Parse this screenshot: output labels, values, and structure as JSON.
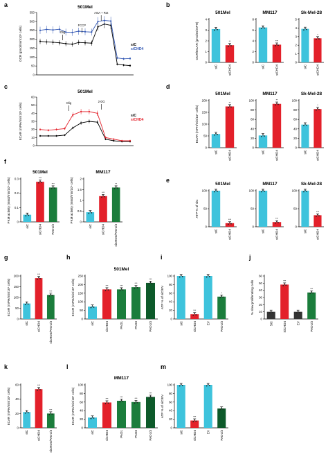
{
  "colors": {
    "siC": "#3ec3dc",
    "red": "#e3202a",
    "green": "#1b7d3c",
    "dark_green": "#0d5a2a",
    "blue": "#3358b4",
    "black": "#000000"
  },
  "panels": [
    {
      "letter": "a",
      "type": "line",
      "title": "501Mel",
      "ylabel": "OCR (pmol/min/10⁴ cells)",
      "ylim": [
        0,
        350
      ],
      "yticks": [
        0,
        50,
        100,
        150,
        200,
        250,
        300,
        350
      ],
      "annotations": [
        "Olig",
        "FCCP",
        "AntA + Rot"
      ],
      "legend": [
        "siC",
        "siCHD4"
      ],
      "series": [
        {
          "name": "siC",
          "color": "#000000",
          "values": [
            188,
            185,
            183,
            180,
            175,
            172,
            182,
            180,
            178,
            270,
            285,
            278,
            60,
            55,
            52
          ]
        },
        {
          "name": "siCHD4",
          "color": "#3358b4",
          "values": [
            250,
            255,
            252,
            256,
            240,
            238,
            245,
            242,
            240,
            300,
            305,
            302,
            95,
            90,
            92
          ]
        }
      ]
    },
    {
      "letter": "a",
      "type": "line",
      "title": "501Mel",
      "ylabel": "ECAR (mPH/min/10⁴ cells)",
      "ylim": [
        0,
        60
      ],
      "yticks": [
        0,
        10,
        20,
        30,
        40,
        50,
        60
      ],
      "annotations": [
        "Olig",
        "2-DG"
      ],
      "legend": [
        "siC",
        "siCHD4"
      ],
      "series": [
        {
          "name": "siC",
          "color": "#000000",
          "values": [
            12,
            12,
            12,
            13,
            22,
            28,
            30,
            29,
            8,
            6,
            5,
            5
          ]
        },
        {
          "name": "siCHD4",
          "color": "#e3202a",
          "values": [
            20,
            19,
            20,
            21,
            38,
            42,
            42,
            40,
            10,
            8,
            6,
            6
          ]
        }
      ]
    }
  ],
  "letters": {
    "a": "a",
    "b": "b",
    "c": "c",
    "d": "d",
    "e": "e",
    "f": "f",
    "g": "g",
    "h": "h",
    "i": "i",
    "j": "j",
    "k": "k",
    "l": "l",
    "m": "m"
  },
  "chart_data": [
    {
      "id": "a",
      "type": "line",
      "title": "501Mel",
      "ylabel": "OCR (pmol/min/10⁴ cells)",
      "ylim": [
        0,
        350
      ],
      "legend": [
        "siC",
        "siCHD4"
      ],
      "annotations": [
        "Olig",
        "FCCP",
        "AntA + Rot"
      ],
      "series": [
        {
          "name": "siC",
          "values": [
            188,
            185,
            183,
            180,
            175,
            172,
            182,
            180,
            178,
            270,
            285,
            278,
            60,
            55,
            52
          ]
        },
        {
          "name": "siCHD4",
          "values": [
            250,
            255,
            252,
            256,
            240,
            238,
            245,
            242,
            240,
            300,
            305,
            302,
            95,
            90,
            92
          ]
        }
      ]
    },
    {
      "id": "b1",
      "type": "bar",
      "title": "501Mel",
      "ylabel": "OCR/ECAR (pmoles/mPH)",
      "ylim": [
        0,
        4
      ],
      "yticks": [
        0,
        1,
        2,
        3,
        4
      ],
      "categories": [
        "siC",
        "siCHD4"
      ],
      "values": [
        3.1,
        1.6
      ],
      "colors": [
        "#3ec3dc",
        "#e3202a"
      ],
      "sig": [
        "",
        "**"
      ]
    },
    {
      "id": "b2",
      "type": "bar",
      "title": "MM117",
      "ylim": [
        0,
        8
      ],
      "yticks": [
        0,
        2,
        4,
        6,
        8
      ],
      "categories": [
        "siC",
        "siCHD4"
      ],
      "values": [
        6.5,
        3.3
      ],
      "colors": [
        "#3ec3dc",
        "#e3202a"
      ],
      "sig": [
        "",
        "***"
      ]
    },
    {
      "id": "b3",
      "type": "bar",
      "title": "Sk-Mel-28",
      "ylim": [
        0,
        5
      ],
      "yticks": [
        0,
        1,
        2,
        3,
        4,
        5
      ],
      "categories": [
        "siC",
        "siCHD4"
      ],
      "values": [
        3.9,
        2.8
      ],
      "colors": [
        "#3ec3dc",
        "#e3202a"
      ],
      "sig": [
        "",
        "*"
      ]
    },
    {
      "id": "c",
      "type": "line",
      "title": "501Mel",
      "ylabel": "ECAR (mPH/min/10⁴ cells)",
      "ylim": [
        0,
        60
      ],
      "legend": [
        "siC",
        "siCHD4"
      ],
      "annotations": [
        "Olig",
        "2-DG"
      ],
      "series": [
        {
          "name": "siC",
          "values": [
            12,
            12,
            12,
            13,
            22,
            28,
            30,
            29,
            8,
            6,
            5,
            5
          ]
        },
        {
          "name": "siCHD4",
          "values": [
            20,
            19,
            20,
            21,
            38,
            42,
            42,
            40,
            10,
            8,
            6,
            6
          ]
        }
      ]
    },
    {
      "id": "d1",
      "type": "bar",
      "title": "501Mel",
      "ylabel": "ECAR (mPH/min/10⁴ cells)",
      "ylim": [
        0,
        200
      ],
      "yticks": [
        0,
        50,
        100,
        150,
        200
      ],
      "categories": [
        "siC",
        "siCHD4"
      ],
      "values": [
        58,
        175
      ],
      "colors": [
        "#3ec3dc",
        "#e3202a"
      ],
      "sig": [
        "",
        "**"
      ]
    },
    {
      "id": "d2",
      "type": "bar",
      "title": "MM117",
      "ylim": [
        0,
        100
      ],
      "yticks": [
        0,
        20,
        40,
        60,
        80,
        100
      ],
      "categories": [
        "siC",
        "siCHD4"
      ],
      "values": [
        26,
        93
      ],
      "colors": [
        "#3ec3dc",
        "#e3202a"
      ],
      "sig": [
        "",
        "**"
      ]
    },
    {
      "id": "d3",
      "type": "bar",
      "title": "Sk-Mel-28",
      "ylim": [
        0,
        100
      ],
      "yticks": [
        0,
        20,
        40,
        60,
        80,
        100
      ],
      "categories": [
        "siC",
        "siCHD4"
      ],
      "values": [
        49,
        82
      ],
      "colors": [
        "#3ec3dc",
        "#e3202a"
      ],
      "sig": [
        "",
        "*"
      ]
    },
    {
      "id": "e1",
      "type": "bar",
      "title": "501Mel",
      "ylabel": "ATP % of siC",
      "ylim": [
        0,
        100
      ],
      "yticks": [
        0,
        50,
        100
      ],
      "categories": [
        "siC",
        "siCHD4"
      ],
      "values": [
        100,
        10
      ],
      "colors": [
        "#3ec3dc",
        "#e3202a"
      ],
      "sig": [
        "",
        "***"
      ]
    },
    {
      "id": "e2",
      "type": "bar",
      "title": "MM117",
      "ylim": [
        0,
        100
      ],
      "yticks": [
        0,
        50,
        100
      ],
      "categories": [
        "siC",
        "siCHD4"
      ],
      "values": [
        100,
        13
      ],
      "colors": [
        "#3ec3dc",
        "#e3202a"
      ],
      "sig": [
        "",
        "***"
      ]
    },
    {
      "id": "e3",
      "type": "bar",
      "title": "Sk-Mel-28",
      "ylim": [
        0,
        100
      ],
      "yticks": [
        0,
        50,
        100
      ],
      "categories": [
        "siC",
        "siCHD4"
      ],
      "values": [
        100,
        32
      ],
      "colors": [
        "#3ec3dc",
        "#e3202a"
      ],
      "sig": [
        "",
        "***"
      ]
    },
    {
      "id": "f1",
      "type": "bar",
      "title": "501Mel",
      "ylabel": "PKM activity (nMol/min/10⁶ cells)",
      "ylim": [
        0,
        0.3
      ],
      "yticks": [
        0,
        0.1,
        0.2,
        0.3
      ],
      "categories": [
        "siC",
        "siCHD4",
        "PAD1/3"
      ],
      "values": [
        0.05,
        0.28,
        0.24
      ],
      "colors": [
        "#3ec3dc",
        "#e3202a",
        "#1b7d3c"
      ],
      "sig": [
        "",
        "***",
        "***"
      ]
    },
    {
      "id": "f2",
      "type": "bar",
      "title": "MM117",
      "ylabel": "PKM activity (nMol/min/10⁶ cells)",
      "ylim": [
        0,
        2.0
      ],
      "yticks": [
        0,
        0.5,
        1.0,
        1.5,
        2.0
      ],
      "categories": [
        "siC",
        "siCHD4",
        "siCHD4/PAD1/3"
      ],
      "values": [
        0.45,
        1.2,
        1.6
      ],
      "colors": [
        "#3ec3dc",
        "#e3202a",
        "#1b7d3c"
      ],
      "sig": [
        "",
        "***",
        "**"
      ]
    },
    {
      "id": "g",
      "type": "bar",
      "ylabel": "ECAR (mPH/min/10⁴ cells)",
      "ylim": [
        0,
        200
      ],
      "yticks": [
        0,
        50,
        100,
        150,
        200
      ],
      "categories": [
        "siC",
        "siCHD4",
        "siCHD4/PAD1/3"
      ],
      "values": [
        72,
        190,
        112
      ],
      "colors": [
        "#3ec3dc",
        "#e3202a",
        "#1b7d3c"
      ],
      "sig": [
        "",
        "***",
        "***"
      ]
    },
    {
      "id": "h",
      "type": "bar",
      "title": "501Mel",
      "ylabel": "ECAR (mPH/min/10⁴ cells)",
      "ylim": [
        0,
        250
      ],
      "yticks": [
        0,
        50,
        100,
        150,
        200,
        250
      ],
      "categories": [
        "siC",
        "siCHD4",
        "PAD1",
        "PAD3",
        "PAD1/3"
      ],
      "values": [
        72,
        172,
        172,
        185,
        210
      ],
      "colors": [
        "#3ec3dc",
        "#e3202a",
        "#1b7d3c",
        "#1b7d3c",
        "#0d5a2a"
      ],
      "sig": [
        "",
        "***",
        "***",
        "***",
        "***"
      ]
    },
    {
      "id": "i",
      "type": "bar",
      "ylabel": "ATP % of siC/EV",
      "ylim": [
        0,
        100
      ],
      "yticks": [
        0,
        20,
        40,
        60,
        80,
        100
      ],
      "categories": [
        "siC",
        "siCHD4",
        "EV",
        "PAD1/3"
      ],
      "values": [
        100,
        11,
        100,
        52
      ],
      "colors": [
        "#3ec3dc",
        "#e3202a",
        "#3ec3dc",
        "#1b7d3c"
      ],
      "sig": [
        "",
        "***",
        "",
        "*"
      ]
    },
    {
      "id": "j",
      "type": "bar",
      "ylabel": "% slow proliferating cells",
      "ylim": [
        0,
        60
      ],
      "yticks": [
        0,
        10,
        20,
        30,
        40,
        50,
        60
      ],
      "categories": [
        "SiC",
        "SiCHD4",
        "EV",
        "PAD1/3"
      ],
      "values": [
        10,
        48,
        10,
        37
      ],
      "colors": [
        "#333333",
        "#e3202a",
        "#333333",
        "#1b7d3c"
      ],
      "sig": [
        "",
        "***",
        "",
        "***"
      ]
    },
    {
      "id": "k",
      "type": "bar",
      "ylabel": "ECAR (mPH/min/10⁴ cells)",
      "ylim": [
        0,
        60
      ],
      "yticks": [
        0,
        20,
        40,
        60
      ],
      "categories": [
        "siC",
        "siCHD4",
        "siCHD4/PAD1/3"
      ],
      "values": [
        22,
        54,
        20
      ],
      "colors": [
        "#3ec3dc",
        "#e3202a",
        "#1b7d3c"
      ],
      "sig": [
        "",
        "***",
        "***"
      ]
    },
    {
      "id": "l",
      "type": "bar",
      "title": "MM117",
      "ylabel": "ECAR (mPH/min/10⁴ cells)",
      "ylim": [
        0,
        100
      ],
      "yticks": [
        0,
        20,
        40,
        60,
        80,
        100
      ],
      "categories": [
        "siC",
        "siCHD4",
        "PAD1",
        "PAD3",
        "PAD1/3"
      ],
      "values": [
        24,
        59,
        63,
        60,
        72
      ],
      "colors": [
        "#3ec3dc",
        "#e3202a",
        "#1b7d3c",
        "#1b7d3c",
        "#0d5a2a"
      ],
      "sig": [
        "",
        "***",
        "***",
        "***",
        "***"
      ]
    },
    {
      "id": "m",
      "type": "bar",
      "ylabel": "ATP % of siC/EV",
      "ylim": [
        0,
        100
      ],
      "yticks": [
        0,
        20,
        40,
        60,
        80,
        100
      ],
      "categories": [
        "siC",
        "siCHD4",
        "EV",
        "PAD1/3"
      ],
      "values": [
        100,
        17,
        100,
        45
      ],
      "colors": [
        "#3ec3dc",
        "#e3202a",
        "#3ec3dc",
        "#0d5a2a"
      ],
      "sig": [
        "",
        "***",
        "",
        ""
      ]
    }
  ]
}
